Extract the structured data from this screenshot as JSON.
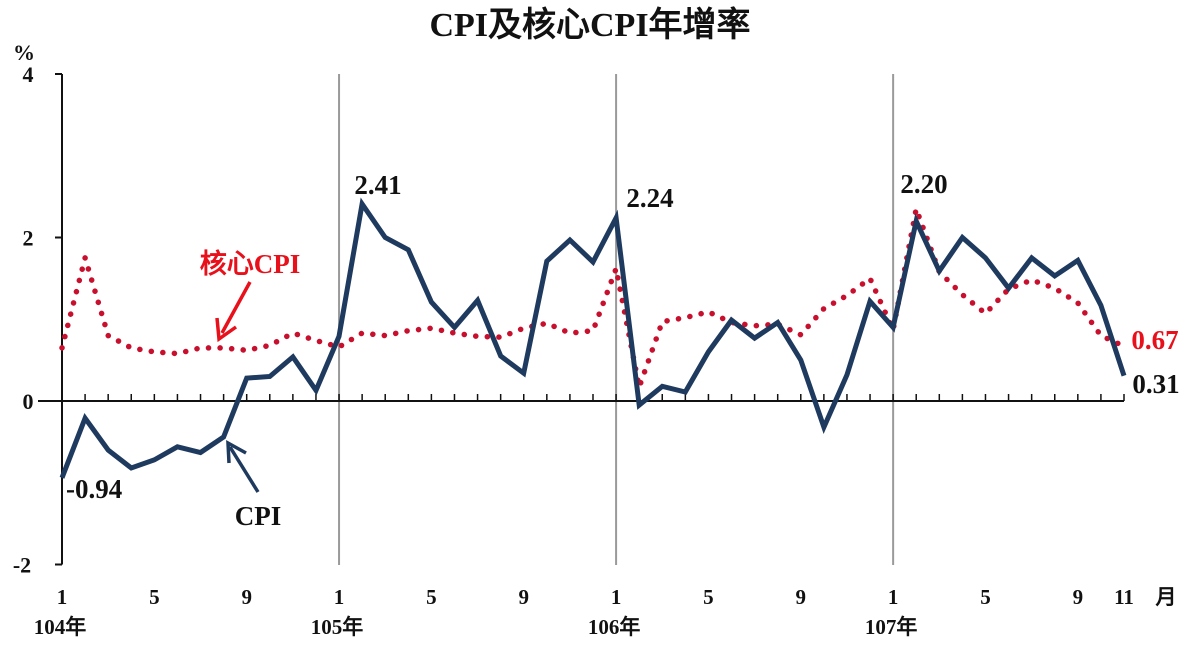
{
  "chart_data": {
    "type": "line",
    "title": "CPI及核心CPI年增率",
    "ylabel": "%",
    "xlabel": "月",
    "ylim": [
      -2,
      4
    ],
    "yticks": [
      4,
      2,
      0,
      -2
    ],
    "x_tick_labels": [
      {
        "index": 0,
        "label": "1"
      },
      {
        "index": 4,
        "label": "5"
      },
      {
        "index": 8,
        "label": "9"
      },
      {
        "index": 12,
        "label": "1"
      },
      {
        "index": 16,
        "label": "5"
      },
      {
        "index": 20,
        "label": "9"
      },
      {
        "index": 24,
        "label": "1"
      },
      {
        "index": 28,
        "label": "5"
      },
      {
        "index": 32,
        "label": "9"
      },
      {
        "index": 36,
        "label": "1"
      },
      {
        "index": 40,
        "label": "5"
      },
      {
        "index": 44,
        "label": "9"
      },
      {
        "index": 46,
        "label": "11"
      }
    ],
    "year_labels": [
      {
        "index": 0,
        "label": "104年"
      },
      {
        "index": 12,
        "label": "105年"
      },
      {
        "index": 24,
        "label": "106年"
      },
      {
        "index": 36,
        "label": "107年"
      }
    ],
    "year_dividers": [
      12,
      24,
      36
    ],
    "x": [
      "104/1",
      "104/2",
      "104/3",
      "104/4",
      "104/5",
      "104/6",
      "104/7",
      "104/8",
      "104/9",
      "104/10",
      "104/11",
      "104/12",
      "105/1",
      "105/2",
      "105/3",
      "105/4",
      "105/5",
      "105/6",
      "105/7",
      "105/8",
      "105/9",
      "105/10",
      "105/11",
      "105/12",
      "106/1",
      "106/2",
      "106/3",
      "106/4",
      "106/5",
      "106/6",
      "106/7",
      "106/8",
      "106/9",
      "106/10",
      "106/11",
      "106/12",
      "107/1",
      "107/2",
      "107/3",
      "107/4",
      "107/5",
      "107/6",
      "107/7",
      "107/8",
      "107/9",
      "107/10",
      "107/11"
    ],
    "series": [
      {
        "name": "CPI",
        "color": "#1f3a5f",
        "style": "solid",
        "values": [
          -0.94,
          -0.21,
          -0.6,
          -0.82,
          -0.72,
          -0.56,
          -0.63,
          -0.44,
          0.28,
          0.3,
          0.54,
          0.13,
          0.79,
          2.41,
          2.0,
          1.85,
          1.21,
          0.9,
          1.23,
          0.55,
          0.34,
          1.71,
          1.97,
          1.7,
          2.24,
          -0.05,
          0.18,
          0.11,
          0.6,
          0.99,
          0.77,
          0.96,
          0.5,
          -0.32,
          0.32,
          1.22,
          0.9,
          2.2,
          1.59,
          2.0,
          1.75,
          1.38,
          1.75,
          1.53,
          1.72,
          1.17,
          0.31
        ]
      },
      {
        "name": "核心CPI",
        "color": "#c8102e",
        "style": "dotted",
        "values": [
          0.65,
          1.75,
          0.8,
          0.65,
          0.6,
          0.58,
          0.65,
          0.65,
          0.62,
          0.68,
          0.83,
          0.74,
          0.66,
          0.83,
          0.8,
          0.86,
          0.89,
          0.83,
          0.79,
          0.78,
          0.89,
          0.95,
          0.83,
          0.86,
          1.62,
          0.17,
          0.97,
          1.02,
          1.09,
          0.96,
          0.92,
          0.94,
          0.81,
          1.13,
          1.29,
          1.5,
          0.87,
          2.35,
          1.58,
          1.3,
          1.07,
          1.37,
          1.48,
          1.38,
          1.2,
          0.8,
          0.67
        ]
      }
    ],
    "annotations": [
      {
        "text": "-0.94",
        "series": "CPI",
        "index": 0,
        "color": "#111111"
      },
      {
        "text": "2.41",
        "series": "CPI",
        "index": 13,
        "color": "#111111"
      },
      {
        "text": "2.24",
        "series": "CPI",
        "index": 24,
        "color": "#111111"
      },
      {
        "text": "2.20",
        "series": "CPI",
        "index": 37,
        "color": "#111111"
      },
      {
        "text": "0.31",
        "series": "CPI",
        "index": 46,
        "color": "#111111"
      },
      {
        "text": "0.67",
        "series": "核心CPI",
        "index": 46,
        "color": "#e8101a"
      }
    ],
    "legend_callouts": [
      {
        "text": "CPI",
        "color": "#111111",
        "arrow_color": "#1f3a5f"
      },
      {
        "text": "核心CPI",
        "color": "#e8101a",
        "arrow_color": "#e8101a"
      }
    ],
    "grid": false
  },
  "labels": {
    "title": "CPI及核心CPI年增率",
    "y_unit": "%",
    "x_unit": "月",
    "cpi_callout": "CPI",
    "core_callout": "核心CPI"
  }
}
